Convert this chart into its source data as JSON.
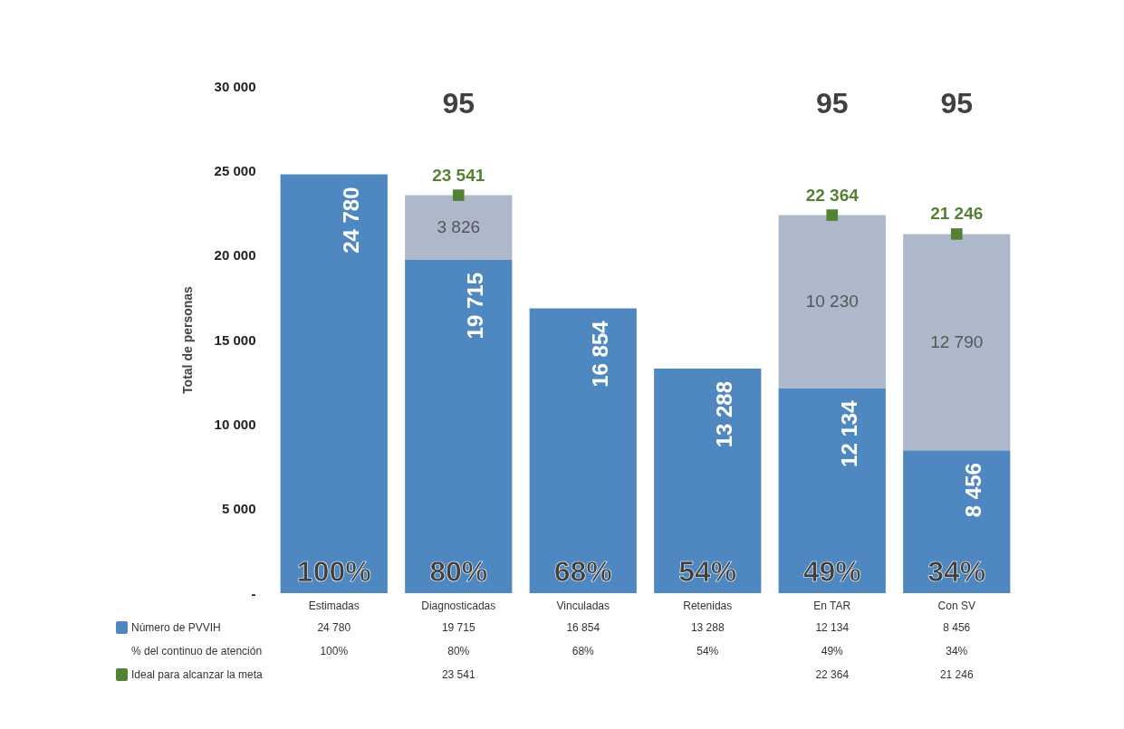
{
  "chart_data": {
    "type": "bar",
    "stacked": true,
    "ylabel": "Total de personas",
    "categories": [
      "Estimadas",
      "Diagnosticadas",
      "Vinculadas",
      "Retenidas",
      "En TAR",
      "Con SV"
    ],
    "ylim": [
      0,
      30000
    ],
    "yticks": [
      {
        "value": 0,
        "label": "-"
      },
      {
        "value": 5000,
        "label": "5 000"
      },
      {
        "value": 10000,
        "label": "10 000"
      },
      {
        "value": 15000,
        "label": "15 000"
      },
      {
        "value": 20000,
        "label": "20 000"
      },
      {
        "value": 25000,
        "label": "25 000"
      },
      {
        "value": 30000,
        "label": "30 000"
      }
    ],
    "grid": false,
    "legend": "bottom left",
    "series": [
      {
        "name": "Número de PVVIH",
        "color": "#4f88c0",
        "values": [
          24780,
          19715,
          16854,
          13288,
          12134,
          8456
        ],
        "value_labels": [
          "24 780",
          "19 715",
          "16 854",
          "13 288",
          "12 134",
          "8 456"
        ]
      },
      {
        "color": "#adb9cb",
        "values": [
          null,
          3826,
          null,
          null,
          10230,
          12790
        ],
        "value_labels": [
          null,
          "3 826",
          null,
          null,
          "10 230",
          "12 790"
        ]
      },
      {
        "name": "Ideal para alcanzar la meta",
        "type": "scatter",
        "marker": "square",
        "color": "#548235",
        "x": [
          "Estimadas",
          "Diagnosticadas",
          "Vinculadas",
          "Retenidas",
          "En TAR",
          "Con SV"
        ],
        "values": [
          null,
          23541,
          null,
          null,
          22364,
          21246
        ],
        "value_labels": [
          null,
          "23 541",
          null,
          null,
          "22 364",
          "21 246"
        ]
      }
    ],
    "annotations": [
      "% del continuo de atención",
      {
        "text": "100%",
        "x": "Estimadas",
        "y": 0
      },
      {
        "text": "80%",
        "x": "Diagnosticadas",
        "y": 0
      },
      {
        "text": "68%",
        "x": "Vinculadas",
        "y": 0
      },
      {
        "text": "54%",
        "x": "Retenidas",
        "y": 0
      },
      {
        "text": "49%",
        "x": "En TAR",
        "y": 0
      },
      {
        "text": "34%",
        "x": "Con SV",
        "y": 0
      },
      "95",
      "95",
      "95"
    ]
  }
}
